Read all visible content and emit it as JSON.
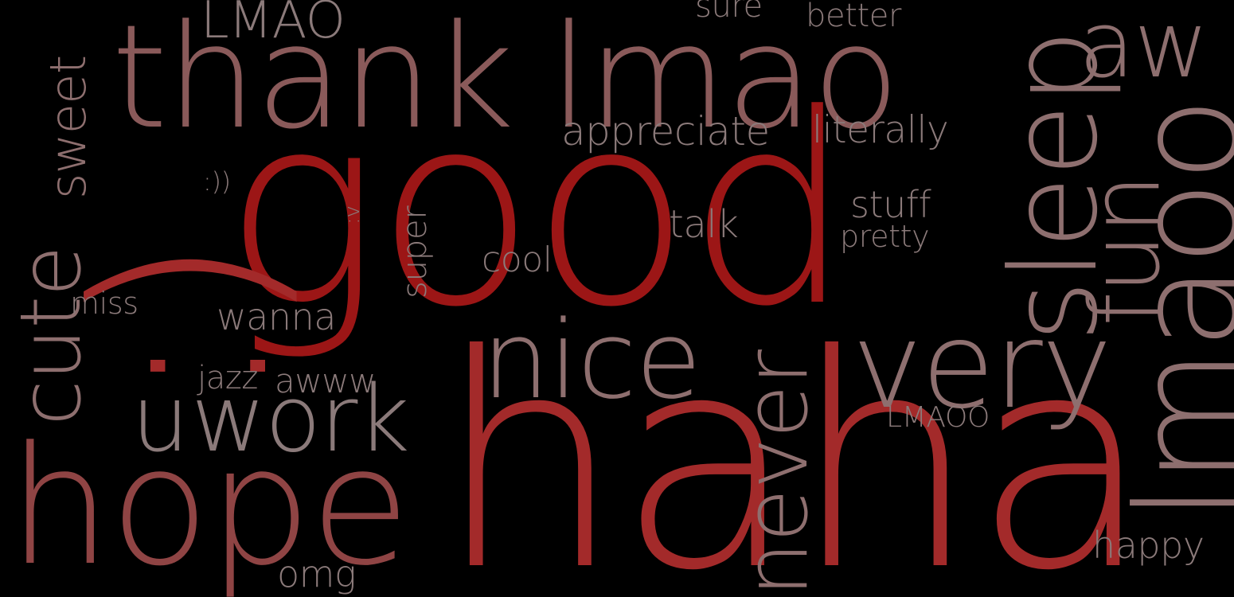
{
  "background": "#000000",
  "palette": {
    "red": "#9c1616",
    "red2": "#a32a2a",
    "rose": "#8f4444",
    "mauve": "#8a5a5a",
    "taupe": "#8e6f6f",
    "grey": "#8b7a7a"
  },
  "words": {
    "good": "good",
    "haha": "haha",
    "smiley": ":)",
    "thank": "thank",
    "lmao": "lmao",
    "hope": "hope",
    "sleep": "sleep",
    "lmaoo_vertical": "lmaoo",
    "nice": "nice",
    "very": "very",
    "work": "work",
    "u": "u",
    "cute": "cute",
    "never": "never",
    "fun": "fun",
    "aw": "aw",
    "sweet": "sweet",
    "LMAO": "LMAO",
    "appreciate": "appreciate",
    "literally": "literally",
    "sure": "sure",
    "better": "better",
    "talk": "talk",
    "stuff": "stuff",
    "pretty": "pretty",
    "cool": "cool",
    "super": "super",
    "wanna": "wanna",
    "miss": "miss",
    "jazz": "jazz",
    "awww": "awww",
    "LMAOO": "LMAOO",
    "happy": "happy",
    "omg": "omg",
    "smiley_double": ":))",
    "smiley_v": ":v"
  }
}
